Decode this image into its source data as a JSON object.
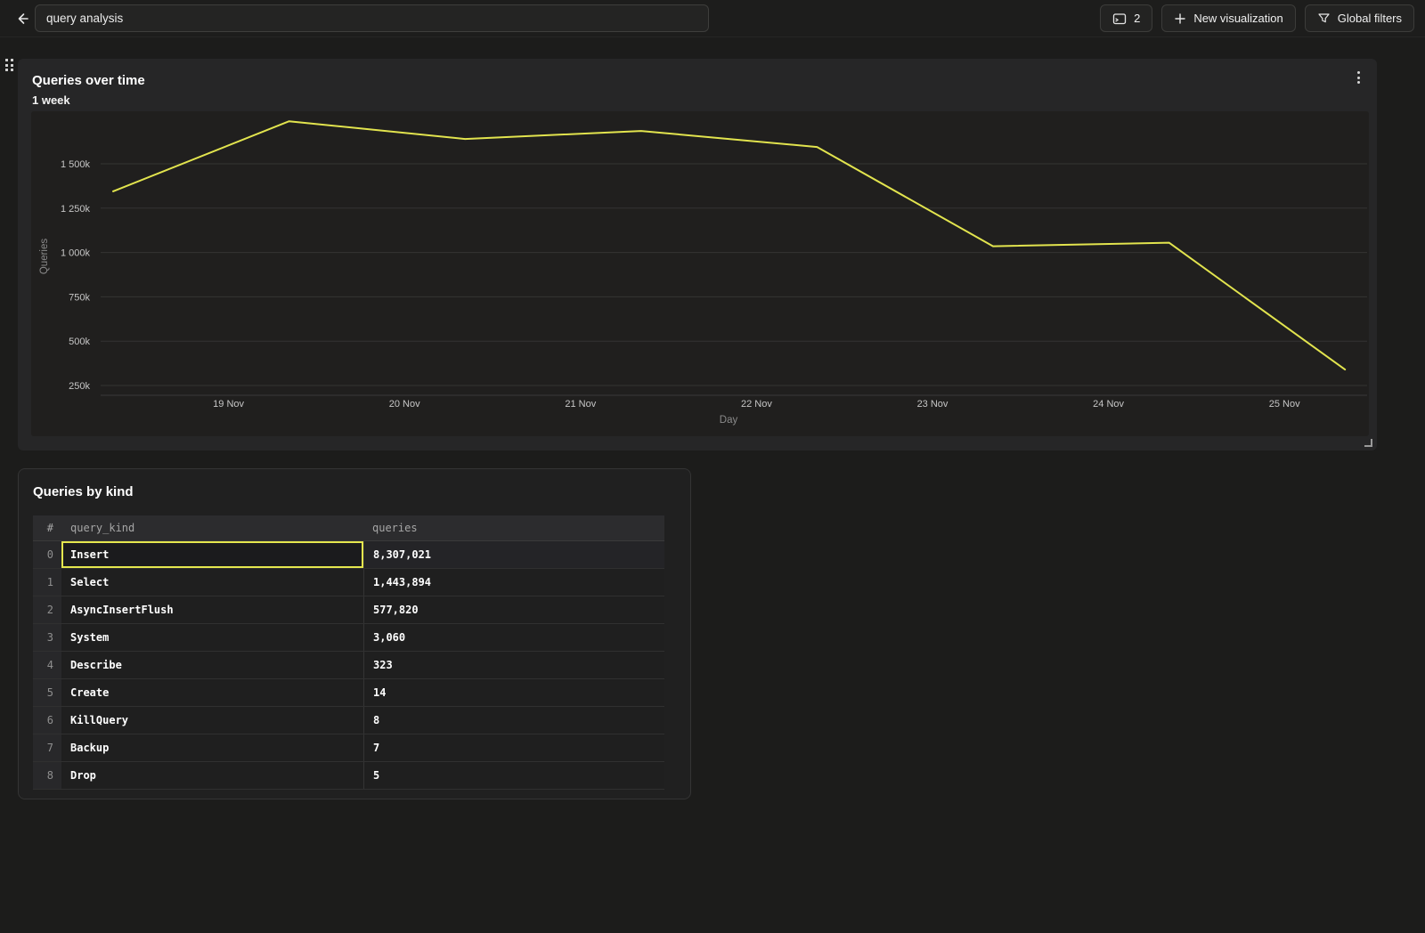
{
  "colors": {
    "accent_yellow": "#e2e44e",
    "selected_cell_border": "#e5e74e"
  },
  "topbar": {
    "back_icon": "arrow-left",
    "title_input": {
      "value": "query analysis"
    },
    "console_button": {
      "icon": "sql-console",
      "count": "2"
    },
    "new_visualization_button": {
      "icon": "plus",
      "label": "New visualization"
    },
    "global_filters_button": {
      "icon": "funnel",
      "label": "Global filters"
    }
  },
  "chart_panel": {
    "title": "Queries over time",
    "subtitle": "1 week",
    "menu_icon": "kebab-menu",
    "drag_handle_icon": "drag-dots",
    "resize_handle_icon": "resize-corner"
  },
  "chart_data": {
    "type": "line",
    "title": "Queries over time",
    "subtitle": "1 week",
    "xlabel": "Day",
    "ylabel": "Queries",
    "grid": true,
    "legend": false,
    "line_color": "#e2e44e",
    "x_tick_labels": [
      "19 Nov",
      "20 Nov",
      "21 Nov",
      "22 Nov",
      "23 Nov",
      "24 Nov",
      "25 Nov"
    ],
    "y_tick_labels": [
      "1 500k",
      "1 250k",
      "1 000k",
      "750k",
      "500k",
      "250k"
    ],
    "y_tick_values": [
      1500000,
      1250000,
      1000000,
      750000,
      500000,
      250000
    ],
    "categories": [
      "18 Nov",
      "19 Nov",
      "20 Nov",
      "21 Nov",
      "22 Nov",
      "23 Nov",
      "24 Nov",
      "25 Nov"
    ],
    "series": [
      {
        "name": "Queries",
        "values": [
          1345000,
          1740000,
          1640000,
          1685000,
          1595000,
          1035000,
          1055000,
          340000
        ]
      }
    ],
    "ylim": [
      195000,
      1800000
    ]
  },
  "table_panel": {
    "title": "Queries by kind",
    "columns": [
      "#",
      "query_kind",
      "queries"
    ],
    "rows": [
      {
        "index": "0",
        "query_kind": "Insert",
        "queries": "8,307,021",
        "selected": true
      },
      {
        "index": "1",
        "query_kind": "Select",
        "queries": "1,443,894",
        "selected": false
      },
      {
        "index": "2",
        "query_kind": "AsyncInsertFlush",
        "queries": "577,820",
        "selected": false
      },
      {
        "index": "3",
        "query_kind": "System",
        "queries": "3,060",
        "selected": false
      },
      {
        "index": "4",
        "query_kind": "Describe",
        "queries": "323",
        "selected": false
      },
      {
        "index": "5",
        "query_kind": "Create",
        "queries": "14",
        "selected": false
      },
      {
        "index": "6",
        "query_kind": "KillQuery",
        "queries": "8",
        "selected": false
      },
      {
        "index": "7",
        "query_kind": "Backup",
        "queries": "7",
        "selected": false
      },
      {
        "index": "8",
        "query_kind": "Drop",
        "queries": "5",
        "selected": false
      }
    ]
  }
}
